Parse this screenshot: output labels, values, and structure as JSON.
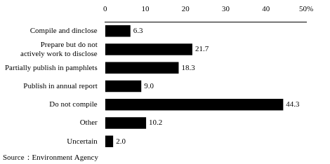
{
  "chart_data": {
    "type": "bar",
    "orientation": "horizontal",
    "categories": [
      "Compile and dinclose",
      "Prepare but do not\nactively work to disclose",
      "Partially publish in pamphlets",
      "Publish in annual report",
      "Do not compile",
      "Other",
      "Uncertain"
    ],
    "values": [
      6.3,
      21.7,
      18.3,
      9.0,
      44.3,
      10.2,
      2.0
    ],
    "value_labels": [
      "6.3",
      "21.7",
      "18.3",
      "9.0",
      "44.3",
      "10.2",
      "2.0"
    ],
    "data_labels": true,
    "color": "#000000",
    "xlim": [
      0,
      50
    ],
    "xticks": [
      0,
      10,
      20,
      30,
      40,
      {
        "value": 50,
        "label": "50%"
      }
    ],
    "grid": false,
    "annotation": "Source：Environment Agency"
  }
}
